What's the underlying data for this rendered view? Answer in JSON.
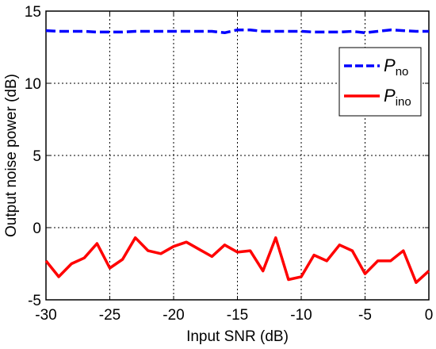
{
  "chart_data": {
    "type": "line",
    "xlabel": "Input SNR (dB)",
    "ylabel": "Output noise power (dB)",
    "xlim": [
      -30,
      0
    ],
    "ylim": [
      -5,
      15
    ],
    "xticks": [
      -30,
      -25,
      -20,
      -15,
      -10,
      -5,
      0
    ],
    "yticks": [
      -5,
      0,
      5,
      10,
      15
    ],
    "grid": true,
    "grid_style": "dotted",
    "legend_position": "top-right",
    "x": [
      -30,
      -29,
      -28,
      -27,
      -26,
      -25,
      -24,
      -23,
      -22,
      -21,
      -20,
      -19,
      -18,
      -17,
      -16,
      -15,
      -14,
      -13,
      -12,
      -11,
      -10,
      -9,
      -8,
      -7,
      -6,
      -5,
      -4,
      -3,
      -2,
      -1,
      0
    ],
    "series": [
      {
        "name": "P",
        "subscript": "no",
        "color": "#0000ff",
        "line_style": "dashed",
        "values": [
          13.65,
          13.6,
          13.6,
          13.6,
          13.55,
          13.55,
          13.55,
          13.6,
          13.6,
          13.6,
          13.6,
          13.6,
          13.6,
          13.6,
          13.5,
          13.7,
          13.7,
          13.6,
          13.6,
          13.6,
          13.6,
          13.55,
          13.55,
          13.55,
          13.6,
          13.5,
          13.6,
          13.7,
          13.65,
          13.6,
          13.6
        ]
      },
      {
        "name": "P",
        "subscript": "ino",
        "color": "#ff0000",
        "line_style": "solid",
        "values": [
          -2.3,
          -3.4,
          -2.5,
          -2.1,
          -1.1,
          -2.8,
          -2.2,
          -0.7,
          -1.6,
          -1.8,
          -1.3,
          -1.0,
          -1.5,
          -2.0,
          -1.2,
          -1.7,
          -1.6,
          -3.0,
          -0.7,
          -3.6,
          -3.4,
          -1.9,
          -2.3,
          -1.2,
          -1.6,
          -3.2,
          -2.3,
          -2.3,
          -1.6,
          -3.8,
          -3.0
        ]
      }
    ]
  }
}
